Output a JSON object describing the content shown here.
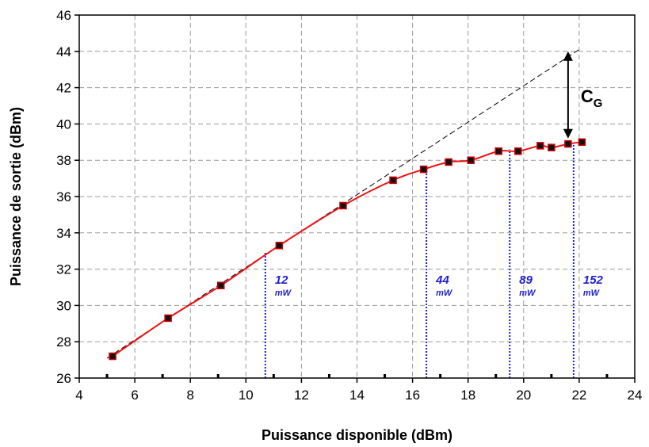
{
  "chart_data": {
    "type": "line",
    "xlabel": "Puissance disponible (dBm)",
    "ylabel": "Puissance de sortie (dBm)",
    "xlim": [
      4,
      24
    ],
    "ylim": [
      26,
      46
    ],
    "x_ticks": [
      4,
      6,
      8,
      10,
      12,
      14,
      16,
      18,
      20,
      22,
      24
    ],
    "y_ticks": [
      26,
      28,
      30,
      32,
      34,
      36,
      38,
      40,
      42,
      44,
      46
    ],
    "grid": true,
    "series": [
      {
        "color": "#ee1111",
        "marker_color": "#cc0000",
        "points": [
          {
            "x": 5.2,
            "y": 27.2
          },
          {
            "x": 7.2,
            "y": 29.3
          },
          {
            "x": 9.1,
            "y": 31.1
          },
          {
            "x": 11.2,
            "y": 33.3
          },
          {
            "x": 13.5,
            "y": 35.5
          },
          {
            "x": 15.3,
            "y": 36.9
          },
          {
            "x": 16.4,
            "y": 37.5
          },
          {
            "x": 17.3,
            "y": 37.9
          },
          {
            "x": 18.1,
            "y": 38.0
          },
          {
            "x": 19.1,
            "y": 38.5
          },
          {
            "x": 19.8,
            "y": 38.5
          },
          {
            "x": 20.6,
            "y": 38.8
          },
          {
            "x": 21.0,
            "y": 38.7
          },
          {
            "x": 21.6,
            "y": 38.9
          },
          {
            "x": 22.1,
            "y": 39.0
          }
        ]
      }
    ],
    "reference_line": {
      "x1": 5.0,
      "y1": 27.1,
      "x2": 22.0,
      "y2": 44.1,
      "color": "#000000",
      "style": "dashed"
    },
    "markers": [
      {
        "x": 10.7,
        "y": 32.9,
        "value": "12",
        "unit": "mW"
      },
      {
        "x": 16.5,
        "y": 37.6,
        "value": "44",
        "unit": "mW"
      },
      {
        "x": 19.5,
        "y": 38.6,
        "value": "89",
        "unit": "mW"
      },
      {
        "x": 21.8,
        "y": 38.9,
        "value": "152",
        "unit": "mW"
      }
    ],
    "marker_color": "#1f1fd0",
    "gain_compression": {
      "x": 21.6,
      "y_top": 44.0,
      "y_bottom": 39.2,
      "label": "C",
      "subscript": "G"
    }
  }
}
